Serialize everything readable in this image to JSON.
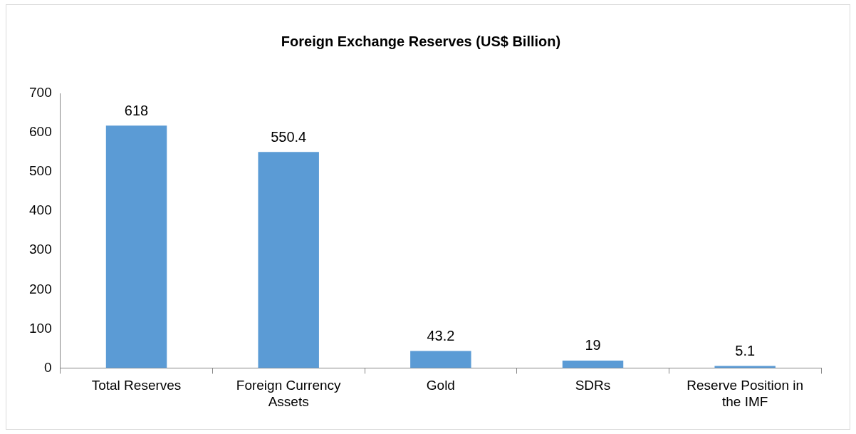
{
  "chart_data": {
    "type": "bar",
    "title": "Foreign Exchange Reserves (US$ Billion)",
    "categories": [
      "Total Reserves",
      "Foreign Currency Assets",
      "Gold",
      "SDRs",
      "Reserve Position in the IMF"
    ],
    "values": [
      618,
      550.4,
      43.2,
      19,
      5.1
    ],
    "color": "#5b9bd5",
    "ylim": [
      0,
      700
    ],
    "yticks": [
      0,
      100,
      200,
      300,
      400,
      500,
      600,
      700
    ],
    "grid": false,
    "legend": false,
    "data_labels": true
  }
}
